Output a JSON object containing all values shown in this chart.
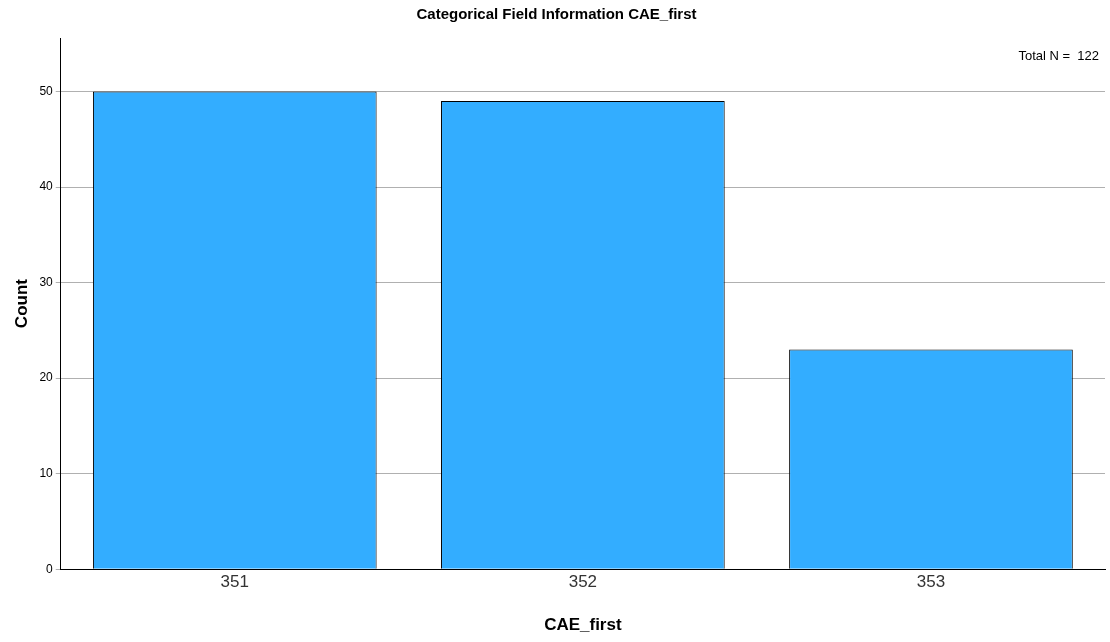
{
  "chart_data": {
    "type": "bar",
    "title": "Categorical Field Information CAE_first",
    "xlabel": "CAE_first",
    "ylabel": "Count",
    "categories": [
      "351",
      "352",
      "353"
    ],
    "values": [
      50,
      49,
      23
    ],
    "color": "#33adff",
    "ylim": [
      0,
      55.6
    ],
    "yticks": [
      0,
      10,
      20,
      30,
      40,
      50
    ],
    "grid": "y",
    "annotations": [
      "Total N =  122"
    ]
  }
}
